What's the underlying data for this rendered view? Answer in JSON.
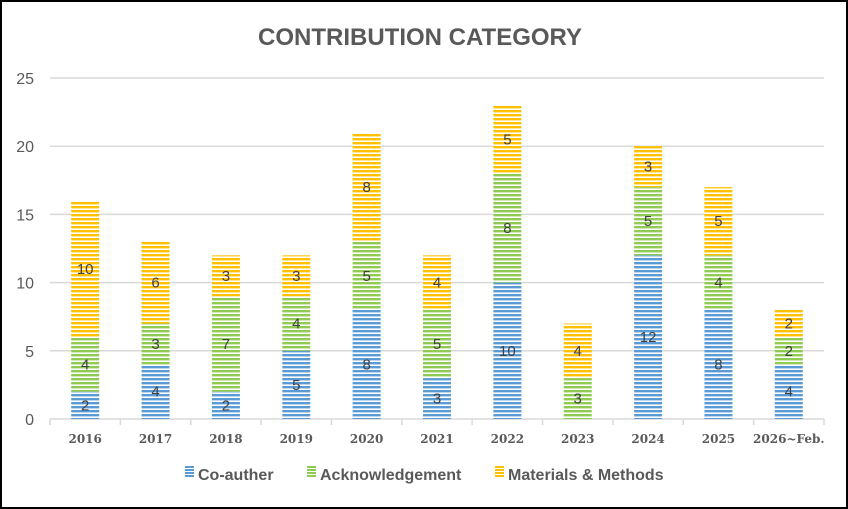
{
  "chart_data": {
    "type": "bar",
    "stacked": true,
    "title": "CONTRIBUTION CATEGORY",
    "xlabel": "",
    "ylabel": "",
    "ylim": [
      0,
      25
    ],
    "yticks": [
      0,
      5,
      10,
      15,
      20,
      25
    ],
    "grid": true,
    "legend_position": "bottom",
    "categories": [
      "2016",
      "2017",
      "2018",
      "2019",
      "2020",
      "2021",
      "2022",
      "2023",
      "2024",
      "2025",
      "2026~Feb."
    ],
    "series": [
      {
        "name": "Co-auther",
        "color": "#5B9BD5",
        "values": [
          2,
          4,
          2,
          5,
          8,
          3,
          10,
          0,
          12,
          8,
          4
        ]
      },
      {
        "name": "Acknowledgement",
        "color": "#8FCB53",
        "values": [
          4,
          3,
          7,
          4,
          5,
          5,
          8,
          3,
          5,
          4,
          2
        ]
      },
      {
        "name": "Materials & Methods",
        "color": "#FFC000",
        "values": [
          10,
          6,
          3,
          3,
          8,
          4,
          5,
          4,
          3,
          5,
          2
        ]
      }
    ]
  }
}
